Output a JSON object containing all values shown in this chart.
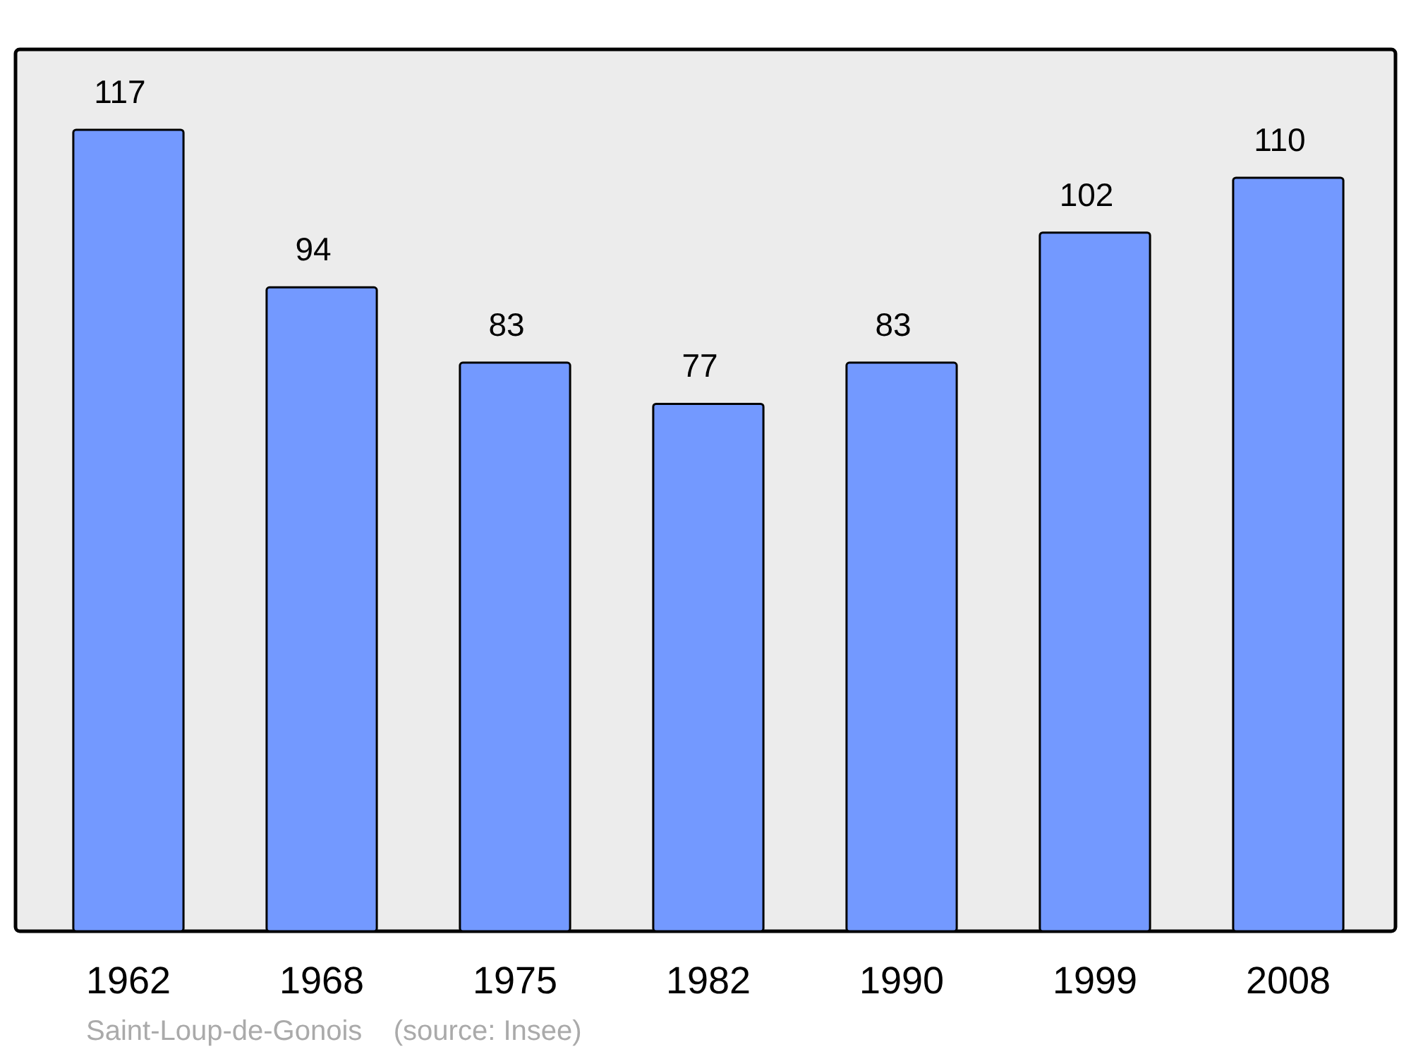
{
  "chart_data": {
    "type": "bar",
    "categories": [
      "1962",
      "1968",
      "1975",
      "1982",
      "1990",
      "1999",
      "2008"
    ],
    "values": [
      117,
      94,
      83,
      77,
      83,
      102,
      110
    ],
    "color": "#7399ff",
    "data_labels": true,
    "annotations": [
      "Saint-Loup-de-Gonois    (source: Insee)"
    ]
  }
}
